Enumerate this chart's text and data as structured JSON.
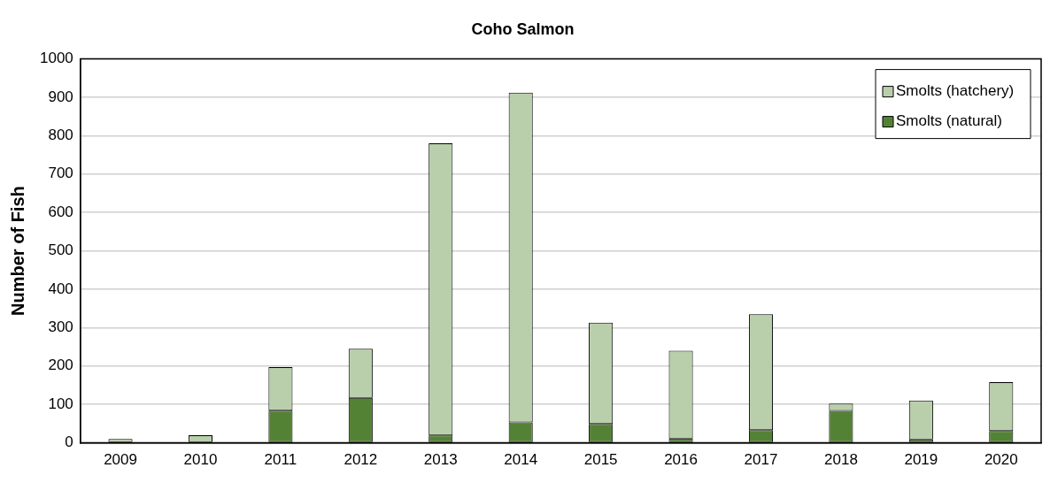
{
  "chart_data": {
    "type": "bar",
    "title": "Coho Salmon",
    "ylabel": "Number of Fish",
    "categories": [
      "2009",
      "2010",
      "2011",
      "2012",
      "2013",
      "2014",
      "2015",
      "2016",
      "2017",
      "2018",
      "2019",
      "2020"
    ],
    "stacked": true,
    "series": [
      {
        "name": "Smolts (natural)",
        "color": "#548235",
        "values": [
          0,
          0,
          84,
          117,
          19,
          53,
          49,
          11,
          33,
          83,
          9,
          31
        ]
      },
      {
        "name": "Smolts (hatchery)",
        "color": "#b9cfab",
        "values": [
          10,
          20,
          113,
          128,
          761,
          859,
          264,
          229,
          302,
          19,
          101,
          127
        ]
      }
    ],
    "ylim": [
      0,
      1000
    ],
    "yticks": [
      0,
      100,
      200,
      300,
      400,
      500,
      600,
      700,
      800,
      900,
      1000
    ],
    "grid": "y",
    "legend": "top right"
  }
}
